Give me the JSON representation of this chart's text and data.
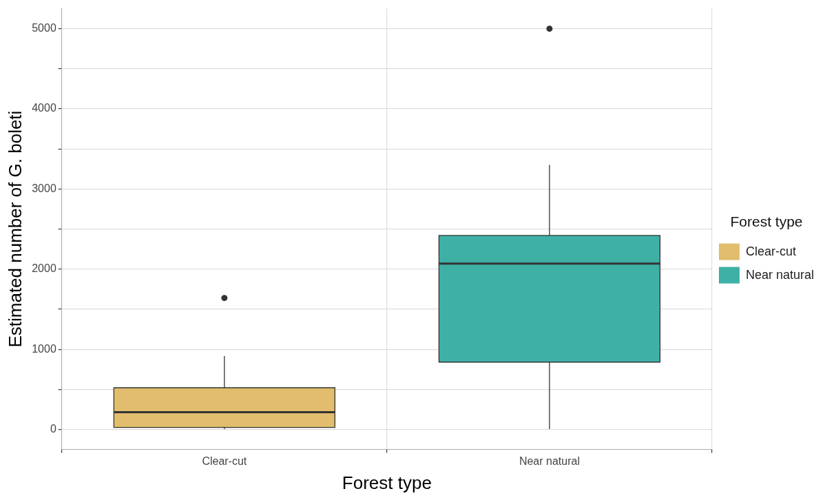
{
  "chart_data": {
    "type": "box",
    "xlabel": "Forest type",
    "ylabel": "Estimated number of G. boleti",
    "legend_title": "Forest type",
    "categories": [
      "Clear-cut",
      "Near natural"
    ],
    "series": [
      {
        "name": "Clear-cut",
        "color": "#e1bd6d",
        "boxes": [
          {
            "low": 5,
            "q1": 25,
            "median": 215,
            "q3": 520,
            "high": 915,
            "outliers": [
              1640
            ]
          },
          null
        ]
      },
      {
        "name": "Near natural",
        "color": "#3eb0a6",
        "boxes": [
          null,
          {
            "low": 5,
            "q1": 840,
            "median": 2070,
            "q3": 2420,
            "high": 3300,
            "outliers": [
              5000
            ]
          }
        ]
      }
    ],
    "ylim": [
      -250,
      5250
    ],
    "yticks": [
      0,
      {
        "value": 500,
        "label": null
      },
      1000,
      {
        "value": 1500,
        "label": null
      },
      2000,
      {
        "value": 2500,
        "label": null
      },
      3000,
      {
        "value": 3500,
        "label": null
      },
      4000,
      {
        "value": 4500,
        "label": null
      },
      5000
    ],
    "grid": true,
    "legend": "right"
  }
}
